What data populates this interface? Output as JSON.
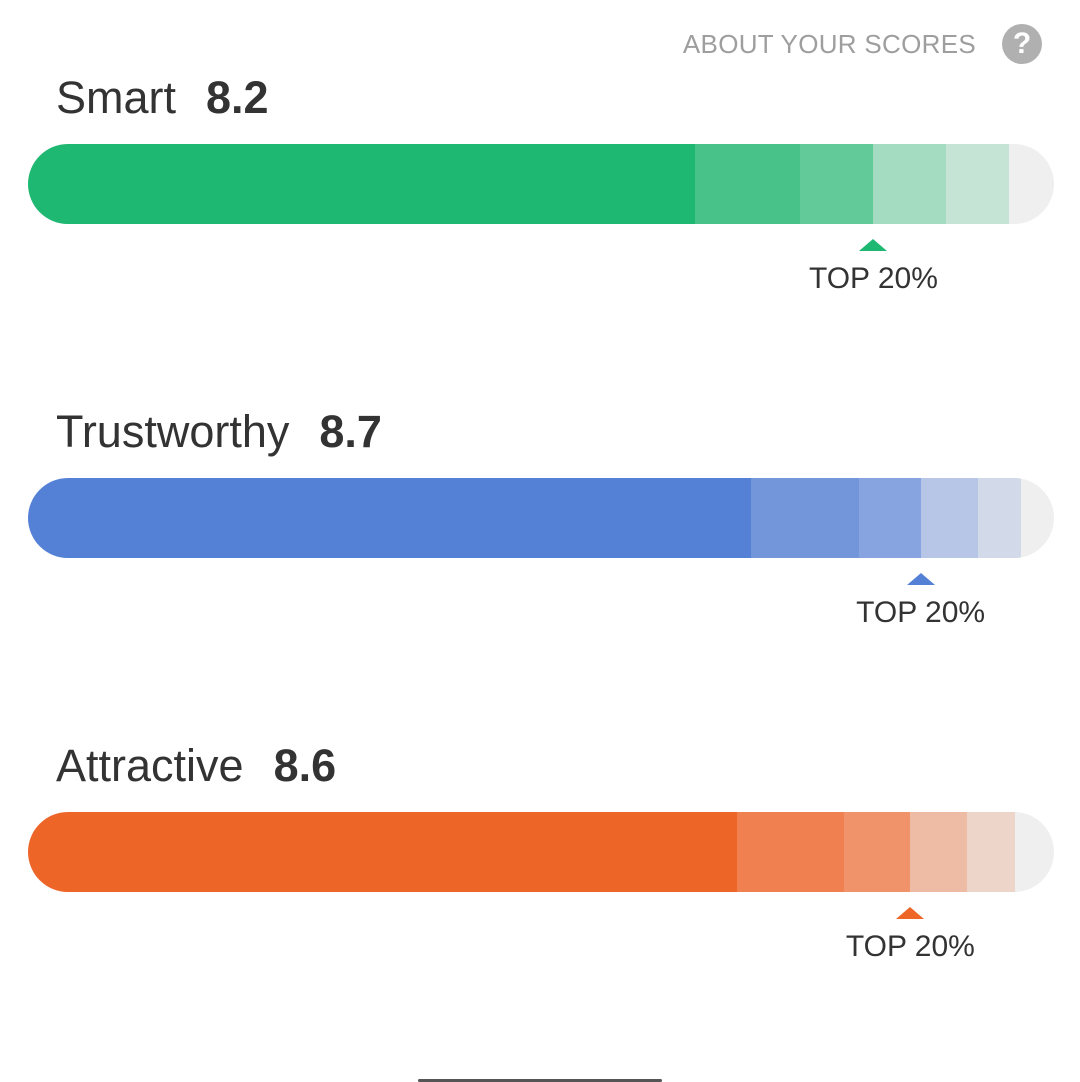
{
  "header": {
    "about_label": "ABOUT YOUR SCORES",
    "help_icon": "help-circle-icon",
    "help_glyph": "?"
  },
  "scores": [
    {
      "name": "Smart",
      "value": "8.2",
      "percentile_label": "TOP 20%",
      "color": "#1fb872",
      "segment_colors": [
        "#1fb872",
        "#48c289",
        "#62c998",
        "#a3dcc0",
        "#c6e4d6"
      ],
      "segment_boundaries_pct": [
        65.0,
        75.2,
        82.4,
        89.5,
        95.6
      ],
      "percentile_position_pct": 82.4
    },
    {
      "name": "Trustworthy",
      "value": "8.7",
      "percentile_label": "TOP 20%",
      "color": "#5481d6",
      "segment_colors": [
        "#5481d6",
        "#7395da",
        "#88a4e0",
        "#b7c6e6",
        "#d2dae9"
      ],
      "segment_boundaries_pct": [
        70.5,
        81.0,
        87.0,
        92.6,
        96.8
      ],
      "percentile_position_pct": 87.0
    },
    {
      "name": "Attractive",
      "value": "8.6",
      "percentile_label": "TOP 20%",
      "color": "#ee6528",
      "segment_colors": [
        "#ee6528",
        "#f08050",
        "#f1936a",
        "#eebca4",
        "#edd5ca"
      ],
      "segment_boundaries_pct": [
        69.1,
        79.5,
        86.0,
        91.5,
        96.2
      ],
      "percentile_position_pct": 86.0
    }
  ],
  "track_color": "#efefef"
}
